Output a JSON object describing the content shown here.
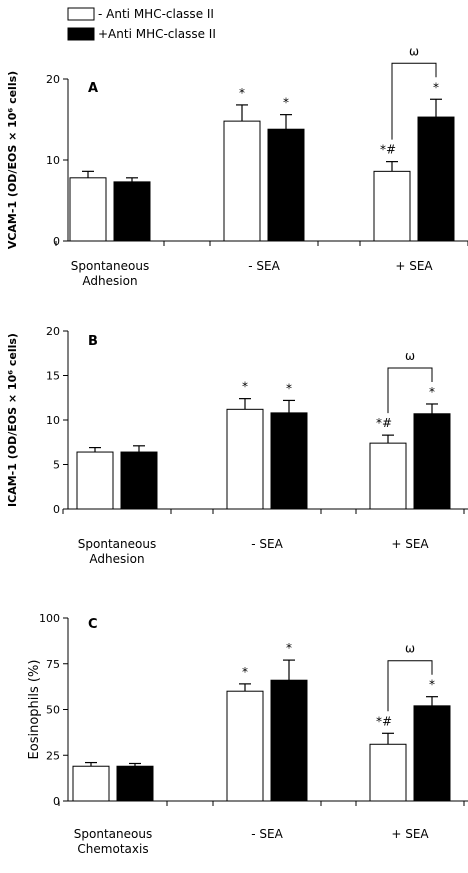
{
  "legend": {
    "items": [
      {
        "label": "- Anti MHC-classe II",
        "color": "#ffffff"
      },
      {
        "label": "+Anti MHC-classe II",
        "color": "#000000"
      }
    ]
  },
  "colors": {
    "open_bar": "#ffffff",
    "filled_bar": "#000000",
    "axis": "#000000"
  },
  "chart_data": [
    {
      "type": "bar",
      "panel_label": "A",
      "ylabel": "VCAM-1 (OD/EOS × 10⁶ cells)",
      "ylim": [
        0,
        20
      ],
      "yticks": [
        "0",
        "10",
        "20"
      ],
      "categories": [
        "Spontaneous\nAdhesion",
        "- SEA",
        "+ SEA"
      ],
      "series": [
        {
          "name": "- Anti MHC-classe II",
          "values": [
            7.8,
            14.8,
            8.6
          ],
          "errors": [
            0.8,
            2.0,
            1.2
          ]
        },
        {
          "name": "+Anti MHC-classe II",
          "values": [
            7.3,
            13.8,
            15.3
          ],
          "errors": [
            0.5,
            1.8,
            2.2
          ]
        }
      ],
      "annotations": [
        {
          "category": 1,
          "series": 0,
          "text": "*"
        },
        {
          "category": 1,
          "series": 1,
          "text": "*"
        },
        {
          "category": 2,
          "series": 0,
          "text": "*#"
        },
        {
          "category": 2,
          "series": 1,
          "text": "*"
        }
      ],
      "bracket": {
        "category": 2,
        "text": "ω"
      }
    },
    {
      "type": "bar",
      "panel_label": "B",
      "ylabel": "ICAM-1 (OD/EOS × 10⁶ cells)",
      "ylim": [
        0,
        20
      ],
      "yticks": [
        "0",
        "5",
        "10",
        "15",
        "20"
      ],
      "categories": [
        "Spontaneous\nAdhesion",
        "- SEA",
        "+ SEA"
      ],
      "series": [
        {
          "name": "- Anti MHC-classe II",
          "values": [
            6.4,
            11.2,
            7.4
          ],
          "errors": [
            0.5,
            1.2,
            0.9
          ]
        },
        {
          "name": "+Anti MHC-classe II",
          "values": [
            6.4,
            10.8,
            10.7
          ],
          "errors": [
            0.7,
            1.4,
            1.1
          ]
        }
      ],
      "annotations": [
        {
          "category": 1,
          "series": 0,
          "text": "*"
        },
        {
          "category": 1,
          "series": 1,
          "text": "*"
        },
        {
          "category": 2,
          "series": 0,
          "text": "*#"
        },
        {
          "category": 2,
          "series": 1,
          "text": "*"
        }
      ],
      "bracket": {
        "category": 2,
        "text": "ω"
      }
    },
    {
      "type": "bar",
      "panel_label": "C",
      "ylabel": "Eosinophils (%)",
      "ylim": [
        0,
        100
      ],
      "yticks": [
        "0",
        "25",
        "50",
        "75",
        "100"
      ],
      "categories": [
        "Spontaneous\nChemotaxis",
        "- SEA",
        "+ SEA"
      ],
      "series": [
        {
          "name": "- Anti MHC-classe II",
          "values": [
            19,
            60,
            31
          ],
          "errors": [
            2,
            4,
            6
          ]
        },
        {
          "name": "+Anti MHC-classe II",
          "values": [
            19,
            66,
            52
          ],
          "errors": [
            1.5,
            11,
            5
          ]
        }
      ],
      "annotations": [
        {
          "category": 1,
          "series": 0,
          "text": "*"
        },
        {
          "category": 1,
          "series": 1,
          "text": "*"
        },
        {
          "category": 2,
          "series": 0,
          "text": "*#"
        },
        {
          "category": 2,
          "series": 1,
          "text": "*"
        }
      ],
      "bracket": {
        "category": 2,
        "text": "ω"
      }
    }
  ]
}
